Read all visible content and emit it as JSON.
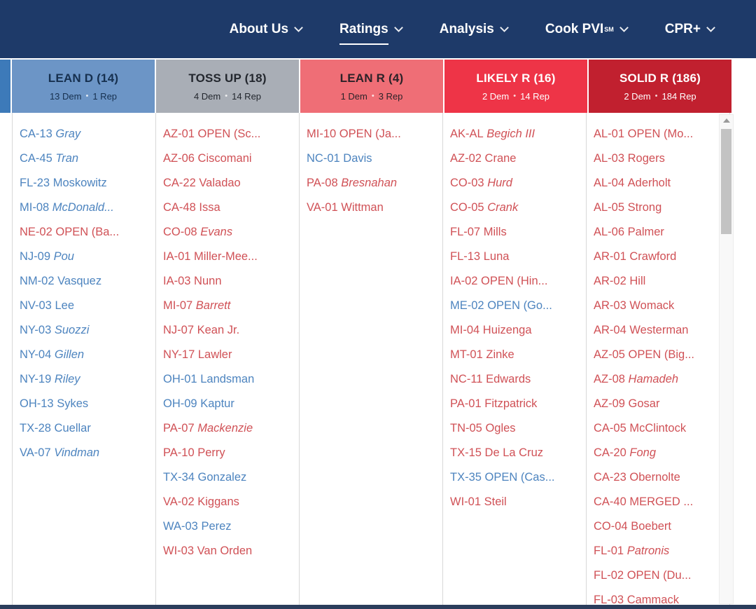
{
  "nav": {
    "items": [
      {
        "label": "About Us"
      },
      {
        "label": "Ratings",
        "active": true
      },
      {
        "label": "Analysis"
      },
      {
        "label": "Cook PVI",
        "sup": "SM"
      },
      {
        "label": "CPR+"
      }
    ]
  },
  "ui": {
    "separator": "•"
  },
  "colors": {
    "nav_bg": "#1e3a69",
    "dem_link": "#4d84bf",
    "rep_link": "#d05156",
    "sliver": "#3d7ab9",
    "bottom_bar": "#2b3d5c"
  },
  "columns": [
    {
      "key": "lean-d",
      "title": "LEAN D (14)",
      "dem_count": "13 Dem",
      "rep_count": "1 Rep",
      "header_bg": "#6c95c6",
      "header_fg": "#16304f",
      "items": [
        {
          "district": "CA-13",
          "name": "Gray",
          "party": "dem",
          "italic": true
        },
        {
          "district": "CA-45",
          "name": "Tran",
          "party": "dem",
          "italic": true
        },
        {
          "district": "FL-23",
          "name": "Moskowitz",
          "party": "dem",
          "italic": false
        },
        {
          "district": "MI-08",
          "name": "McDonald...",
          "party": "dem",
          "italic": true
        },
        {
          "district": "NE-02",
          "name": "OPEN (Ba...",
          "party": "rep",
          "italic": false
        },
        {
          "district": "NJ-09",
          "name": "Pou",
          "party": "dem",
          "italic": true
        },
        {
          "district": "NM-02",
          "name": "Vasquez",
          "party": "dem",
          "italic": false
        },
        {
          "district": "NV-03",
          "name": "Lee",
          "party": "dem",
          "italic": false
        },
        {
          "district": "NY-03",
          "name": "Suozzi",
          "party": "dem",
          "italic": true
        },
        {
          "district": "NY-04",
          "name": "Gillen",
          "party": "dem",
          "italic": true
        },
        {
          "district": "NY-19",
          "name": "Riley",
          "party": "dem",
          "italic": true
        },
        {
          "district": "OH-13",
          "name": "Sykes",
          "party": "dem",
          "italic": false
        },
        {
          "district": "TX-28",
          "name": "Cuellar",
          "party": "dem",
          "italic": false
        },
        {
          "district": "VA-07",
          "name": "Vindman",
          "party": "dem",
          "italic": true
        }
      ]
    },
    {
      "key": "toss-up",
      "title": "TOSS UP (18)",
      "dem_count": "4 Dem",
      "rep_count": "14 Rep",
      "header_bg": "#a9aeb6",
      "header_fg": "#23272e",
      "items": [
        {
          "district": "AZ-01",
          "name": "OPEN (Sc...",
          "party": "rep",
          "italic": false
        },
        {
          "district": "AZ-06",
          "name": "Ciscomani",
          "party": "rep",
          "italic": false
        },
        {
          "district": "CA-22",
          "name": "Valadao",
          "party": "rep",
          "italic": false
        },
        {
          "district": "CA-48",
          "name": "Issa",
          "party": "rep",
          "italic": false
        },
        {
          "district": "CO-08",
          "name": "Evans",
          "party": "rep",
          "italic": true
        },
        {
          "district": "IA-01",
          "name": "Miller-Mee...",
          "party": "rep",
          "italic": false
        },
        {
          "district": "IA-03",
          "name": "Nunn",
          "party": "rep",
          "italic": false
        },
        {
          "district": "MI-07",
          "name": "Barrett",
          "party": "rep",
          "italic": true
        },
        {
          "district": "NJ-07",
          "name": "Kean Jr.",
          "party": "rep",
          "italic": false
        },
        {
          "district": "NY-17",
          "name": "Lawler",
          "party": "rep",
          "italic": false
        },
        {
          "district": "OH-01",
          "name": "Landsman",
          "party": "dem",
          "italic": false
        },
        {
          "district": "OH-09",
          "name": "Kaptur",
          "party": "dem",
          "italic": false
        },
        {
          "district": "PA-07",
          "name": "Mackenzie",
          "party": "rep",
          "italic": true
        },
        {
          "district": "PA-10",
          "name": "Perry",
          "party": "rep",
          "italic": false
        },
        {
          "district": "TX-34",
          "name": "Gonzalez",
          "party": "dem",
          "italic": false
        },
        {
          "district": "VA-02",
          "name": "Kiggans",
          "party": "rep",
          "italic": false
        },
        {
          "district": "WA-03",
          "name": "Perez",
          "party": "dem",
          "italic": false
        },
        {
          "district": "WI-03",
          "name": "Van Orden",
          "party": "rep",
          "italic": false
        }
      ]
    },
    {
      "key": "lean-r",
      "title": "LEAN R (4)",
      "dem_count": "1 Dem",
      "rep_count": "3 Rep",
      "header_bg": "#ef6e76",
      "header_fg": "#2b2228",
      "items": [
        {
          "district": "MI-10",
          "name": "OPEN (Ja...",
          "party": "rep",
          "italic": false
        },
        {
          "district": "NC-01",
          "name": "Davis",
          "party": "dem",
          "italic": false
        },
        {
          "district": "PA-08",
          "name": "Bresnahan",
          "party": "rep",
          "italic": true
        },
        {
          "district": "VA-01",
          "name": "Wittman",
          "party": "rep",
          "italic": false
        }
      ]
    },
    {
      "key": "likely-r",
      "title": "LIKELY R (16)",
      "dem_count": "2 Dem",
      "rep_count": "14 Rep",
      "header_bg": "#ee3447",
      "header_fg": "#ffffff",
      "items": [
        {
          "district": "AK-AL",
          "name": "Begich III",
          "party": "rep",
          "italic": true
        },
        {
          "district": "AZ-02",
          "name": "Crane",
          "party": "rep",
          "italic": false
        },
        {
          "district": "CO-03",
          "name": "Hurd",
          "party": "rep",
          "italic": true
        },
        {
          "district": "CO-05",
          "name": "Crank",
          "party": "rep",
          "italic": true
        },
        {
          "district": "FL-07",
          "name": "Mills",
          "party": "rep",
          "italic": false
        },
        {
          "district": "FL-13",
          "name": "Luna",
          "party": "rep",
          "italic": false
        },
        {
          "district": "IA-02",
          "name": "OPEN (Hin...",
          "party": "rep",
          "italic": false
        },
        {
          "district": "ME-02",
          "name": "OPEN (Go...",
          "party": "dem",
          "italic": false
        },
        {
          "district": "MI-04",
          "name": "Huizenga",
          "party": "rep",
          "italic": false
        },
        {
          "district": "MT-01",
          "name": "Zinke",
          "party": "rep",
          "italic": false
        },
        {
          "district": "NC-11",
          "name": "Edwards",
          "party": "rep",
          "italic": false
        },
        {
          "district": "PA-01",
          "name": "Fitzpatrick",
          "party": "rep",
          "italic": false
        },
        {
          "district": "TN-05",
          "name": "Ogles",
          "party": "rep",
          "italic": false
        },
        {
          "district": "TX-15",
          "name": "De La Cruz",
          "party": "rep",
          "italic": false
        },
        {
          "district": "TX-35",
          "name": "OPEN (Cas...",
          "party": "dem",
          "italic": false
        },
        {
          "district": "WI-01",
          "name": "Steil",
          "party": "rep",
          "italic": false
        }
      ]
    },
    {
      "key": "solid-r",
      "title": "SOLID R (186)",
      "dem_count": "2 Dem",
      "rep_count": "184 Rep",
      "header_bg": "#c1202f",
      "header_fg": "#ffffff",
      "items": [
        {
          "district": "AL-01",
          "name": "OPEN (Mo...",
          "party": "rep",
          "italic": false
        },
        {
          "district": "AL-03",
          "name": "Rogers",
          "party": "rep",
          "italic": false
        },
        {
          "district": "AL-04",
          "name": "Aderholt",
          "party": "rep",
          "italic": false
        },
        {
          "district": "AL-05",
          "name": "Strong",
          "party": "rep",
          "italic": false
        },
        {
          "district": "AL-06",
          "name": "Palmer",
          "party": "rep",
          "italic": false
        },
        {
          "district": "AR-01",
          "name": "Crawford",
          "party": "rep",
          "italic": false
        },
        {
          "district": "AR-02",
          "name": "Hill",
          "party": "rep",
          "italic": false
        },
        {
          "district": "AR-03",
          "name": "Womack",
          "party": "rep",
          "italic": false
        },
        {
          "district": "AR-04",
          "name": "Westerman",
          "party": "rep",
          "italic": false
        },
        {
          "district": "AZ-05",
          "name": "OPEN (Big...",
          "party": "rep",
          "italic": false
        },
        {
          "district": "AZ-08",
          "name": "Hamadeh",
          "party": "rep",
          "italic": true
        },
        {
          "district": "AZ-09",
          "name": "Gosar",
          "party": "rep",
          "italic": false
        },
        {
          "district": "CA-05",
          "name": "McClintock",
          "party": "rep",
          "italic": false
        },
        {
          "district": "CA-20",
          "name": "Fong",
          "party": "rep",
          "italic": true
        },
        {
          "district": "CA-23",
          "name": "Obernolte",
          "party": "rep",
          "italic": false
        },
        {
          "district": "CA-40",
          "name": "MERGED ...",
          "party": "rep",
          "italic": false
        },
        {
          "district": "CO-04",
          "name": "Boebert",
          "party": "rep",
          "italic": false
        },
        {
          "district": "FL-01",
          "name": "Patronis",
          "party": "rep",
          "italic": true
        },
        {
          "district": "FL-02",
          "name": "OPEN (Du...",
          "party": "rep",
          "italic": false
        },
        {
          "district": "FL-03",
          "name": "Cammack",
          "party": "rep",
          "italic": false
        }
      ]
    }
  ]
}
